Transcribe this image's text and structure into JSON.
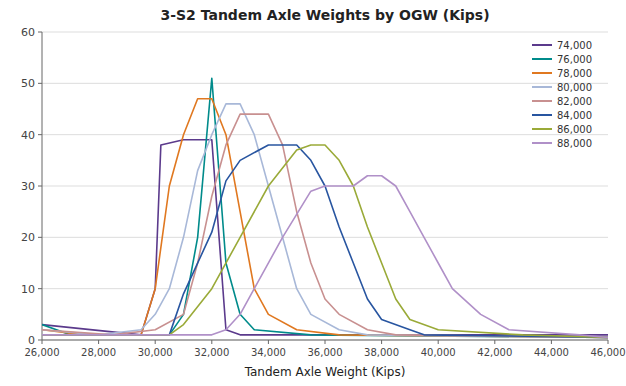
{
  "chart_data": {
    "type": "line",
    "title": "3-S2 Tandem Axle Weights by OGW (Kips)",
    "xlabel": "Tandem Axle Weight (Kips)",
    "xlim": [
      26000,
      46000
    ],
    "ylim": [
      0,
      60
    ],
    "xticks": [
      {
        "value": 26000,
        "label": "26,000"
      },
      {
        "value": 28000,
        "label": "28,000"
      },
      {
        "value": 30000,
        "label": "30,000"
      },
      {
        "value": 32000,
        "label": "32,000"
      },
      {
        "value": 34000,
        "label": "34,000"
      },
      {
        "value": 36000,
        "label": "36,000"
      },
      {
        "value": 38000,
        "label": "38,000"
      },
      {
        "value": 40000,
        "label": "40,000"
      },
      {
        "value": 42000,
        "label": "42,000"
      },
      {
        "value": 44000,
        "label": "44,000"
      },
      {
        "value": 46000,
        "label": "46,000"
      }
    ],
    "yticks": [
      0,
      10,
      20,
      30,
      40,
      50,
      60
    ],
    "grid": true,
    "legend": "upper right",
    "series": [
      {
        "name": "74,000",
        "color": "#5b3a8c",
        "x": [
          26000,
          29500,
          30000,
          30200,
          31000,
          31500,
          32000,
          32500,
          33000,
          34000,
          46000
        ],
        "values": [
          3,
          1,
          10,
          38,
          39,
          39,
          39,
          2,
          1,
          1,
          1
        ]
      },
      {
        "name": "76,000",
        "color": "#008b8b",
        "x": [
          26000,
          27000,
          30500,
          31000,
          31500,
          32000,
          32500,
          33000,
          33500,
          35500,
          46000
        ],
        "values": [
          3,
          1,
          1,
          5,
          20,
          51,
          15,
          5,
          2,
          1,
          0.5
        ]
      },
      {
        "name": "78,000",
        "color": "#e07820",
        "x": [
          26000,
          27500,
          29500,
          30000,
          30500,
          31000,
          31500,
          32000,
          32500,
          33000,
          33500,
          34000,
          35000,
          36500,
          46000
        ],
        "values": [
          2,
          1,
          1,
          10,
          30,
          40,
          47,
          47,
          40,
          25,
          10,
          5,
          2,
          1,
          0.5
        ]
      },
      {
        "name": "80,000",
        "color": "#a8b8d8",
        "x": [
          26000,
          28000,
          29500,
          30000,
          30500,
          31000,
          31500,
          32000,
          32500,
          33000,
          33500,
          34000,
          34500,
          35000,
          35500,
          36500,
          37500,
          46000
        ],
        "values": [
          2,
          1,
          2,
          5,
          10,
          20,
          33,
          40,
          46,
          46,
          40,
          30,
          20,
          10,
          5,
          2,
          1,
          0.5
        ]
      },
      {
        "name": "82,000",
        "color": "#c89090",
        "x": [
          26000,
          28500,
          30000,
          31000,
          31500,
          32000,
          32500,
          33000,
          33500,
          34000,
          34500,
          35000,
          35500,
          36000,
          36500,
          37500,
          38500,
          46000
        ],
        "values": [
          2,
          1,
          2,
          5,
          15,
          28,
          38,
          44,
          44,
          44,
          38,
          25,
          15,
          8,
          5,
          2,
          1,
          0.5
        ]
      },
      {
        "name": "84,000",
        "color": "#2855a0",
        "x": [
          26000,
          30500,
          31000,
          32000,
          32500,
          33000,
          34000,
          35000,
          35500,
          36000,
          36500,
          37000,
          37500,
          38000,
          39000,
          39500,
          46000
        ],
        "values": [
          1,
          1,
          9,
          21,
          31,
          35,
          38,
          38,
          35,
          30,
          22,
          15,
          8,
          4,
          2,
          1,
          0.5
        ]
      },
      {
        "name": "86,000",
        "color": "#9aaa38",
        "x": [
          26000,
          30500,
          31000,
          32000,
          33000,
          34000,
          35000,
          35500,
          36000,
          36500,
          37000,
          37500,
          38000,
          38500,
          39000,
          40000,
          43000,
          46000
        ],
        "values": [
          1,
          1,
          3,
          10,
          20,
          30,
          37,
          38,
          38,
          35,
          30,
          22,
          15,
          8,
          4,
          2,
          1,
          0.5
        ]
      },
      {
        "name": "88,000",
        "color": "#b090c8",
        "x": [
          26000,
          32000,
          32500,
          33000,
          33500,
          34500,
          35500,
          36000,
          37000,
          37500,
          38000,
          38500,
          39000,
          39500,
          40000,
          40500,
          41500,
          42500,
          45000,
          46000
        ],
        "values": [
          1,
          1,
          2,
          5,
          10,
          20,
          29,
          30,
          30,
          32,
          32,
          30,
          25,
          20,
          15,
          10,
          5,
          2,
          1,
          0.5
        ]
      }
    ]
  }
}
